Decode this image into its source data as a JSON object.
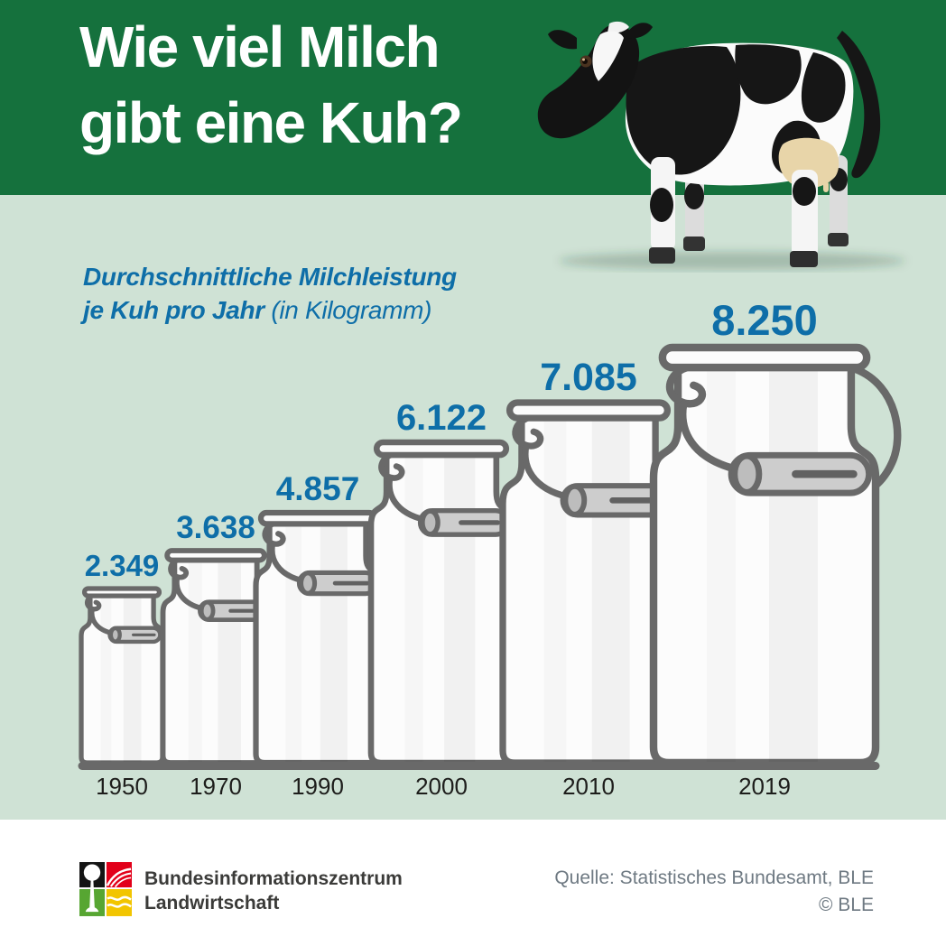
{
  "header": {
    "title_line1": "Wie viel Milch",
    "title_line2": "gibt eine Kuh?"
  },
  "subtitle": {
    "line1": "Durchschnittliche Milchleistung",
    "line2_bold": "je Kuh pro Jahr",
    "line2_normal": " (in Kilogramm)"
  },
  "chart_data": {
    "type": "bar",
    "title": "Durchschnittliche Milchleistung je Kuh pro Jahr (in Kilogramm)",
    "unit": "Kilogramm je Kuh pro Jahr",
    "categories": [
      "1950",
      "1970",
      "1990",
      "2000",
      "2010",
      "2019"
    ],
    "values": [
      2349,
      3638,
      4857,
      6122,
      7085,
      8250
    ],
    "value_labels": [
      "2.349",
      "3.638",
      "4.857",
      "6.122",
      "7.085",
      "8.250"
    ],
    "pictogram": "milk-can",
    "legend_position": "none",
    "grid": false
  },
  "footer": {
    "org_line1": "Bundesinformationszentrum",
    "org_line2": "Landwirtschaft",
    "source_line1": "Quelle: Statistisches Bundesamt, BLE",
    "source_line2": "© BLE"
  },
  "colors": {
    "header_green": "#15713D",
    "panel_green": "#CFE2D5",
    "accent_blue": "#0E6EA8",
    "can_stroke": "#696969",
    "can_fill": "#FCFCFC",
    "handle_fill": "#CDCDCD",
    "year_text": "#1D1D1B",
    "source_gray": "#6E7982",
    "logo_black": "#141414",
    "logo_red": "#E2001A",
    "logo_green": "#57A632",
    "logo_yellow": "#F2C500"
  }
}
